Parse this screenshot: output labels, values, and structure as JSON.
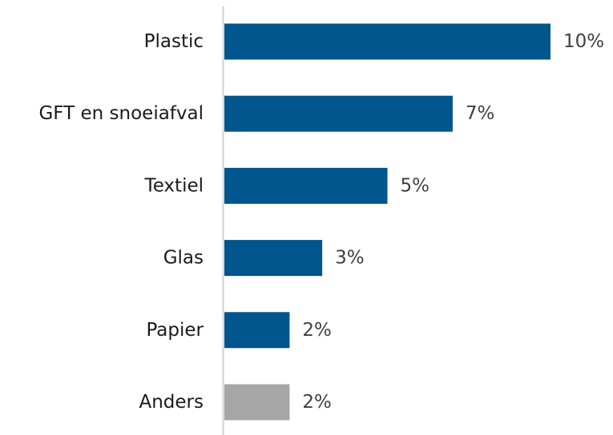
{
  "chart_data": {
    "type": "bar",
    "orientation": "horizontal",
    "categories": [
      "Plastic",
      "GFT en snoeiafval",
      "Textiel",
      "Glas",
      "Papier",
      "Anders"
    ],
    "values": [
      10,
      7,
      5,
      3,
      2,
      2
    ],
    "value_labels": [
      "10%",
      "7%",
      "5%",
      "3%",
      "2%",
      "2%"
    ],
    "unit": "%",
    "bar_colors": [
      "#00558c",
      "#00558c",
      "#00558c",
      "#00558c",
      "#00558c",
      "#a6a6a6"
    ],
    "xlim": [
      0,
      11
    ],
    "grid": false,
    "legend": "none",
    "title": "",
    "xlabel": "",
    "ylabel": ""
  }
}
